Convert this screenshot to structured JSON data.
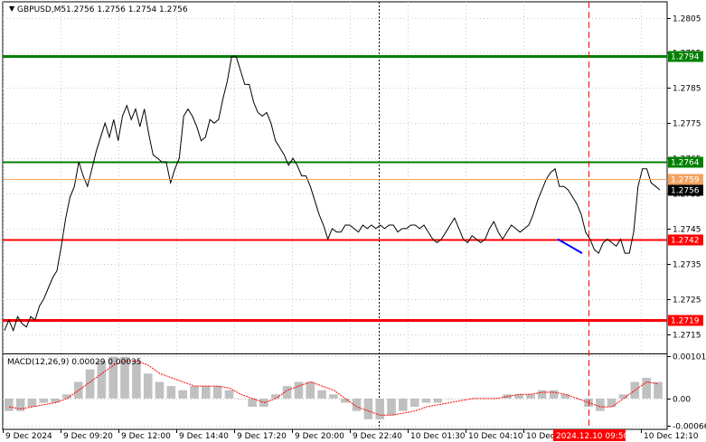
{
  "header": {
    "symbol_label": "GBPUSD,M5",
    "ohlc": "1.2756 1.2756 1.2754 1.2756"
  },
  "macd": {
    "label": "MACD(12,26,9) 0.00029 0.00035",
    "ticks": [
      "0.00101",
      "0.00",
      "-0.00066"
    ],
    "ylim": [
      -0.00072,
      0.00104
    ],
    "hist": [
      -0.0003,
      -0.0003,
      -0.0002,
      -0.0001,
      -0.0001,
      0.0001,
      0.0004,
      0.0007,
      0.0009,
      0.001,
      0.001,
      0.0009,
      0.0006,
      0.0004,
      0.0003,
      0.0002,
      0.0003,
      0.0003,
      0.0003,
      0.0002,
      0.0,
      -0.0002,
      -0.0002,
      0.0001,
      0.0003,
      0.0004,
      0.0004,
      0.0002,
      0.0001,
      -0.0001,
      -0.0003,
      -0.0005,
      -0.0005,
      -0.0004,
      -0.0003,
      -0.0002,
      -0.0001,
      -0.0001,
      0.0,
      0.0,
      0.0,
      0.0,
      0.0,
      0.0001,
      0.0001,
      0.0001,
      0.0002,
      0.0002,
      0.0001,
      0.0,
      -0.0002,
      -0.0003,
      -0.0002,
      0.0001,
      0.0004,
      0.0005,
      0.0004
    ],
    "signal": [
      -0.0002,
      -0.00025,
      -0.0002,
      -0.00015,
      -0.0001,
      0.0,
      0.0002,
      0.0004,
      0.0006,
      0.0008,
      0.0009,
      0.0009,
      0.0008,
      0.0006,
      0.0005,
      0.0004,
      0.0003,
      0.0003,
      0.0003,
      0.00025,
      0.0001,
      0.0,
      -0.0001,
      0.0,
      0.0002,
      0.0003,
      0.0004,
      0.0003,
      0.0002,
      0.0,
      -0.0002,
      -0.0003,
      -0.0004,
      -0.0004,
      -0.00035,
      -0.0003,
      -0.0002,
      -0.00015,
      -0.0001,
      -5e-05,
      0.0,
      0.0,
      0.0,
      5e-05,
      0.0001,
      0.0001,
      0.00015,
      0.00015,
      0.0001,
      0.0,
      -0.0001,
      -0.0002,
      -0.0002,
      0.0,
      0.0002,
      0.0004,
      0.00035
    ]
  },
  "chart_data": {
    "type": "line",
    "symbol": "GBPUSD",
    "timeframe": "M5",
    "ylim": [
      1.27095,
      1.28095
    ],
    "price_ticks": [
      "1.2805",
      "1.2795",
      "1.2785",
      "1.2775",
      "1.2765",
      "1.2755",
      "1.2745",
      "1.2735",
      "1.2725",
      "1.2715"
    ],
    "time_ticks": [
      "9 Dec 2024",
      "9 Dec 09:20",
      "9 Dec 12:00",
      "9 Dec 14:40",
      "9 Dec 17:20",
      "9 Dec 20:00",
      "9 Dec 22:40",
      "10 Dec 01:30",
      "10 Dec 04:10",
      "10 Dec",
      "10 Dec 12:10"
    ],
    "highlighted_time": "2024.12.10 09:50",
    "levels": [
      {
        "value": 1.2794,
        "label": "1.2794",
        "color": "#008000",
        "role": "resistance"
      },
      {
        "value": 1.2764,
        "label": "1.2764",
        "color": "#008000",
        "role": "level"
      },
      {
        "value": 1.2742,
        "label": "1.2742",
        "color": "#ff0000",
        "role": "level"
      },
      {
        "value": 1.2719,
        "label": "1.2719",
        "color": "#ff0000",
        "role": "support"
      }
    ],
    "bid_label": "1.2759",
    "current_price": 1.2756,
    "current_label": "1.2756",
    "series": [
      {
        "values": [
          1.2716,
          1.2719,
          1.2716,
          1.272,
          1.2718,
          1.2717,
          1.272,
          1.2719,
          1.2723,
          1.2725,
          1.2728,
          1.2731,
          1.2733,
          1.274,
          1.2748,
          1.2754,
          1.2757,
          1.2764,
          1.276,
          1.2757,
          1.2762,
          1.2767,
          1.2771,
          1.2775,
          1.2771,
          1.2776,
          1.277,
          1.2777,
          1.278,
          1.2776,
          1.2779,
          1.2774,
          1.2779,
          1.2772,
          1.2766,
          1.2765,
          1.2764,
          1.2764,
          1.2758,
          1.2762,
          1.2765,
          1.2777,
          1.2779,
          1.2777,
          1.2774,
          1.277,
          1.2771,
          1.2776,
          1.2775,
          1.2776,
          1.2782,
          1.2787,
          1.2794,
          1.2794,
          1.279,
          1.2786,
          1.2786,
          1.2781,
          1.2778,
          1.2777,
          1.2778,
          1.2775,
          1.277,
          1.2768,
          1.2766,
          1.2763,
          1.2765,
          1.2763,
          1.276,
          1.276,
          1.2757,
          1.2753,
          1.2749,
          1.2746,
          1.2742,
          1.2745,
          1.2744,
          1.2744,
          1.2746,
          1.2746,
          1.2745,
          1.2744,
          1.2746,
          1.2745,
          1.2746,
          1.2745,
          1.2746,
          1.2745,
          1.2746,
          1.2746,
          1.2744,
          1.2745,
          1.2745,
          1.2746,
          1.2746,
          1.2745,
          1.2746,
          1.2744,
          1.2742,
          1.2741,
          1.2742,
          1.2744,
          1.2746,
          1.2748,
          1.2745,
          1.2742,
          1.2741,
          1.2743,
          1.2742,
          1.2741,
          1.2742,
          1.2745,
          1.2747,
          1.2744,
          1.2742,
          1.2744,
          1.2746,
          1.2745,
          1.2744,
          1.2745,
          1.2746,
          1.2749,
          1.2753,
          1.2756,
          1.2759,
          1.2761,
          1.2762,
          1.2757,
          1.2757,
          1.2756,
          1.2754,
          1.2752,
          1.2749,
          1.2744,
          1.2742,
          1.2739,
          1.2738,
          1.2741,
          1.2742,
          1.2741,
          1.274,
          1.2742,
          1.2738,
          1.2738,
          1.2744,
          1.2757,
          1.2762,
          1.2762,
          1.2758,
          1.2757,
          1.2756
        ]
      },
      {
        "name": "",
        "values": [
          1.2742,
          1.2738
        ],
        "x_range": [
          0.8355,
          0.872
        ],
        "color": "#0000ff"
      }
    ]
  }
}
